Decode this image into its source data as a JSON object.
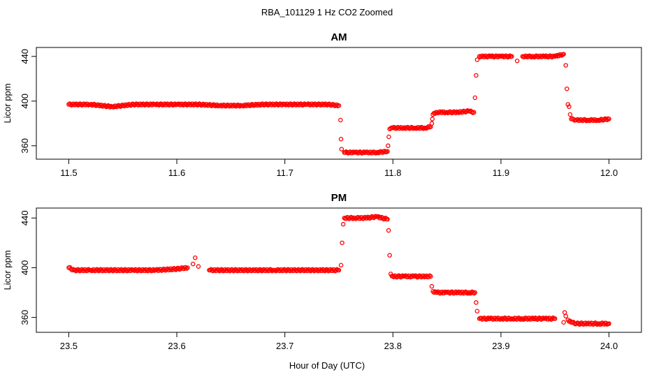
{
  "figure": {
    "title": "RBA_101129  1 Hz CO2 Zoomed",
    "xlabel": "Hour of Day (UTC)"
  },
  "colors": {
    "points": "#ff0000",
    "axis": "#000000",
    "background": "#ffffff"
  },
  "chart_data": [
    {
      "type": "scatter",
      "title": "AM",
      "xlabel": "",
      "ylabel": "Licor ppm",
      "xlim": [
        11.47,
        12.03
      ],
      "ylim": [
        348,
        448
      ],
      "xticks": [
        "11.5",
        "11.6",
        "11.7",
        "11.8",
        "11.9",
        "12.0"
      ],
      "yticks": [
        "360",
        "400",
        "440"
      ],
      "marker": "open-circle",
      "series": [
        {
          "points": [
            [
              11.5,
              397
            ],
            [
              11.52,
              397
            ],
            [
              11.54,
              395
            ],
            [
              11.56,
              397
            ],
            [
              11.58,
              397
            ],
            [
              11.6,
              397
            ],
            [
              11.62,
              397
            ],
            [
              11.64,
              396
            ],
            [
              11.66,
              396
            ],
            [
              11.68,
              397
            ],
            [
              11.7,
              397
            ],
            [
              11.72,
              397
            ],
            [
              11.74,
              397
            ],
            [
              11.75,
              396
            ],
            [
              11.7515,
              383
            ],
            [
              11.752,
              366
            ],
            [
              11.7525,
              357
            ],
            [
              11.755,
              354
            ],
            [
              11.765,
              354
            ],
            [
              11.775,
              354
            ],
            [
              11.785,
              354
            ],
            [
              11.795,
              355
            ],
            [
              11.7955,
              360
            ],
            [
              11.7962,
              368
            ],
            [
              11.797,
              375
            ],
            [
              11.8,
              376
            ],
            [
              11.81,
              376
            ],
            [
              11.82,
              376
            ],
            [
              11.83,
              376
            ],
            [
              11.835,
              377
            ],
            [
              11.836,
              380
            ],
            [
              11.8365,
              384
            ],
            [
              11.837,
              388
            ],
            [
              11.84,
              390
            ],
            [
              11.85,
              390
            ],
            [
              11.86,
              390
            ],
            [
              11.87,
              391
            ],
            [
              11.875,
              390
            ],
            [
              11.876,
              403
            ],
            [
              11.877,
              423
            ],
            [
              11.878,
              437
            ],
            [
              11.88,
              440
            ],
            [
              11.89,
              440
            ],
            [
              11.9,
              440
            ],
            [
              11.91,
              440
            ],
            [
              11.915,
              436
            ],
            [
              11.92,
              440
            ],
            [
              11.93,
              440
            ],
            [
              11.94,
              440
            ],
            [
              11.95,
              440
            ],
            [
              11.958,
              442
            ],
            [
              11.96,
              432
            ],
            [
              11.961,
              411
            ],
            [
              11.962,
              397
            ],
            [
              11.963,
              395
            ],
            [
              11.964,
              388
            ],
            [
              11.965,
              384
            ],
            [
              11.97,
              383
            ],
            [
              11.98,
              383
            ],
            [
              11.99,
              383
            ],
            [
              12.0,
              384
            ]
          ]
        }
      ]
    },
    {
      "type": "scatter",
      "title": "PM",
      "xlabel": "",
      "ylabel": "Licor ppm",
      "xlim": [
        23.47,
        24.03
      ],
      "ylim": [
        348,
        448
      ],
      "xticks": [
        "23.5",
        "23.6",
        "23.7",
        "23.8",
        "23.9",
        "24.0"
      ],
      "yticks": [
        "360",
        "400",
        "440"
      ],
      "marker": "open-circle",
      "series": [
        {
          "points": [
            [
              23.5,
              400
            ],
            [
              23.505,
              398
            ],
            [
              23.52,
              398
            ],
            [
              23.54,
              398
            ],
            [
              23.56,
              398
            ],
            [
              23.58,
              398
            ],
            [
              23.6,
              399
            ],
            [
              23.61,
              400
            ],
            [
              23.615,
              403
            ],
            [
              23.617,
              408
            ],
            [
              23.62,
              401
            ],
            [
              23.63,
              398
            ],
            [
              23.65,
              398
            ],
            [
              23.67,
              398
            ],
            [
              23.69,
              398
            ],
            [
              23.71,
              398
            ],
            [
              23.73,
              398
            ],
            [
              23.75,
              398
            ],
            [
              23.752,
              402
            ],
            [
              23.753,
              420
            ],
            [
              23.754,
              435
            ],
            [
              23.755,
              440
            ],
            [
              23.765,
              440
            ],
            [
              23.775,
              440
            ],
            [
              23.785,
              441
            ],
            [
              23.795,
              439
            ],
            [
              23.796,
              430
            ],
            [
              23.797,
              410
            ],
            [
              23.798,
              395
            ],
            [
              23.8,
              393
            ],
            [
              23.81,
              393
            ],
            [
              23.82,
              393
            ],
            [
              23.83,
              393
            ],
            [
              23.835,
              393
            ],
            [
              23.836,
              385
            ],
            [
              23.837,
              381
            ],
            [
              23.84,
              380
            ],
            [
              23.85,
              380
            ],
            [
              23.86,
              380
            ],
            [
              23.87,
              380
            ],
            [
              23.876,
              380
            ],
            [
              23.877,
              372
            ],
            [
              23.878,
              365
            ],
            [
              23.88,
              359
            ],
            [
              23.89,
              359
            ],
            [
              23.9,
              359
            ],
            [
              23.91,
              359
            ],
            [
              23.92,
              359
            ],
            [
              23.93,
              359
            ],
            [
              23.94,
              359
            ],
            [
              23.95,
              359
            ],
            [
              23.958,
              356
            ],
            [
              23.959,
              364
            ],
            [
              23.96,
              361
            ],
            [
              23.962,
              358
            ],
            [
              23.965,
              356
            ],
            [
              23.97,
              355
            ],
            [
              23.98,
              355
            ],
            [
              23.99,
              355
            ],
            [
              24.0,
              355
            ]
          ]
        }
      ]
    }
  ]
}
